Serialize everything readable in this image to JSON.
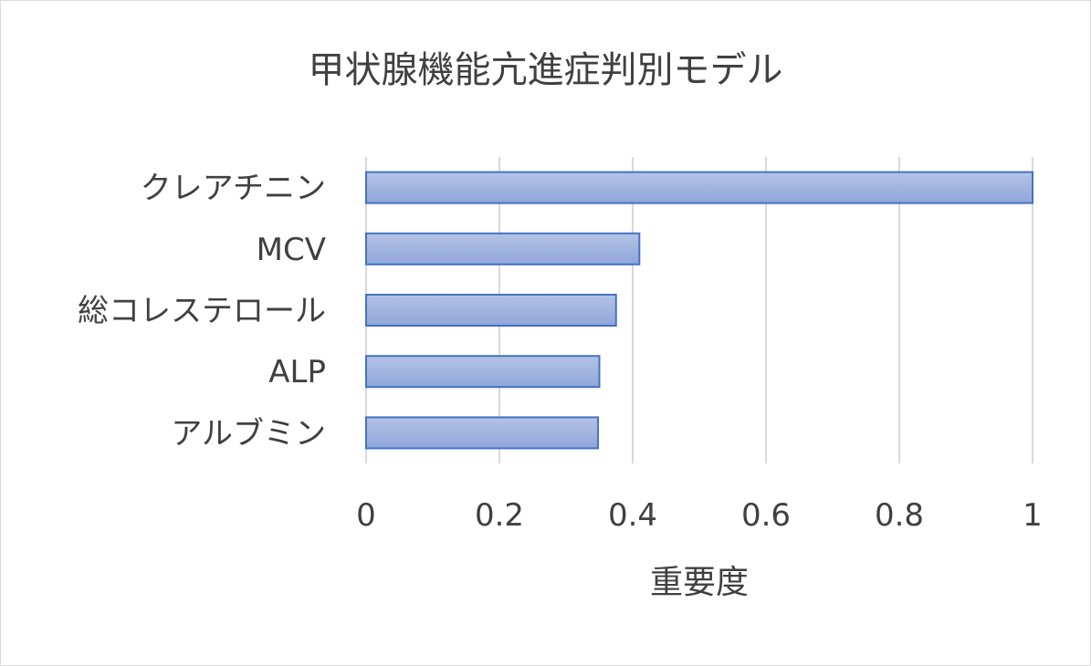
{
  "chart_data": {
    "type": "bar",
    "orientation": "horizontal",
    "title": "甲状腺機能亢進症判別モデル",
    "xlabel": "重要度",
    "ylabel": "",
    "categories": [
      "クレアチニン",
      "MCV",
      "総コレステロール",
      "ALP",
      "アルブミン"
    ],
    "values": [
      1.0,
      0.41,
      0.375,
      0.35,
      0.348
    ],
    "xlim": [
      0,
      1
    ],
    "xticks": [
      0,
      0.2,
      0.4,
      0.6,
      0.8,
      1
    ],
    "tick_labels": [
      "0",
      "0.2",
      "0.4",
      "0.6",
      "0.8",
      "1"
    ],
    "grid": true,
    "legend": "none",
    "colors": {
      "bar_fill_top": "#b4c3e6",
      "bar_fill_bottom": "#8fa6d9",
      "bar_stroke": "#4472c4",
      "grid": "#d9d9d9",
      "text": "#404040"
    }
  }
}
